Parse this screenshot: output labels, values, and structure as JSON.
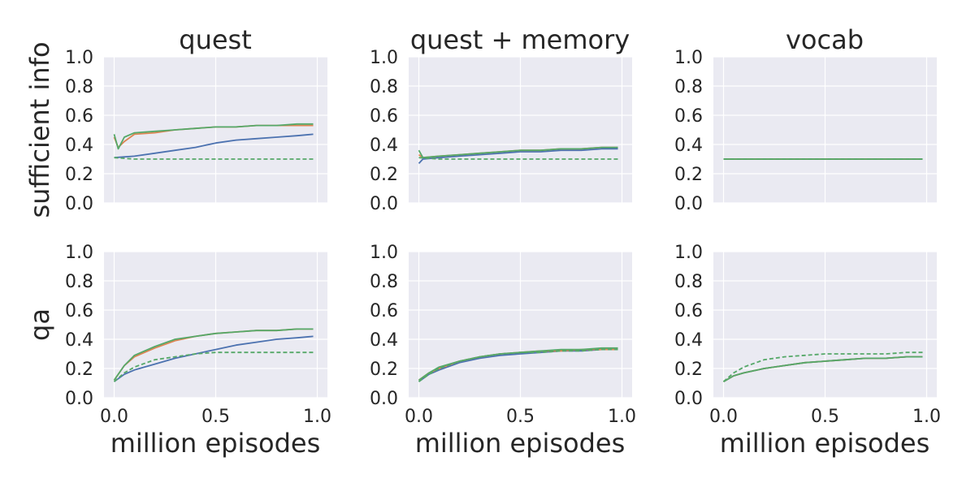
{
  "chart_data": {
    "type": "line",
    "rows": [
      "sufficient info",
      "qa"
    ],
    "columns": [
      "quest",
      "quest + memory",
      "vocab"
    ],
    "xlabel": "million episodes",
    "xlim": [
      -0.05,
      1.05
    ],
    "ylim": [
      0.0,
      1.0
    ],
    "xticks": [
      0.0,
      0.5,
      1.0
    ],
    "xtick_labels": [
      "0.0",
      "0.5",
      "1.0"
    ],
    "yticks": [
      0.0,
      0.2,
      0.4,
      0.6,
      0.8,
      1.0
    ],
    "ytick_labels": [
      "0.0",
      "0.2",
      "0.4",
      "0.6",
      "0.8",
      "1.0"
    ],
    "grid": true,
    "legend": "none",
    "colors": [
      "#4c72b0",
      "#dd8452",
      "#55a868"
    ],
    "panels": [
      {
        "row": "sufficient info",
        "column": "quest",
        "series": [
          {
            "color": "#4c72b0",
            "style": "solid",
            "x": [
              0.0,
              0.1,
              0.2,
              0.3,
              0.4,
              0.5,
              0.6,
              0.7,
              0.8,
              0.9,
              0.98
            ],
            "y": [
              0.31,
              0.32,
              0.34,
              0.36,
              0.38,
              0.41,
              0.43,
              0.44,
              0.45,
              0.46,
              0.47
            ]
          },
          {
            "color": "#dd8452",
            "style": "solid",
            "x": [
              0.0,
              0.02,
              0.05,
              0.1,
              0.2,
              0.3,
              0.4,
              0.5,
              0.6,
              0.7,
              0.8,
              0.9,
              0.98
            ],
            "y": [
              0.45,
              0.38,
              0.42,
              0.47,
              0.48,
              0.5,
              0.51,
              0.52,
              0.52,
              0.53,
              0.53,
              0.53,
              0.53
            ]
          },
          {
            "color": "#55a868",
            "style": "solid",
            "x": [
              0.0,
              0.02,
              0.05,
              0.1,
              0.2,
              0.3,
              0.4,
              0.5,
              0.6,
              0.7,
              0.8,
              0.9,
              0.98
            ],
            "y": [
              0.47,
              0.37,
              0.45,
              0.48,
              0.49,
              0.5,
              0.51,
              0.52,
              0.52,
              0.53,
              0.53,
              0.54,
              0.54
            ]
          },
          {
            "color": "#55a868",
            "style": "dashed",
            "x": [
              0.0,
              0.1,
              0.2,
              0.3,
              0.4,
              0.5,
              0.6,
              0.7,
              0.8,
              0.9,
              0.98
            ],
            "y": [
              0.31,
              0.3,
              0.3,
              0.3,
              0.3,
              0.3,
              0.3,
              0.3,
              0.3,
              0.3,
              0.3
            ]
          }
        ]
      },
      {
        "row": "sufficient info",
        "column": "quest + memory",
        "series": [
          {
            "color": "#4c72b0",
            "style": "solid",
            "x": [
              0.0,
              0.02,
              0.1,
              0.2,
              0.3,
              0.4,
              0.5,
              0.6,
              0.7,
              0.8,
              0.9,
              0.98
            ],
            "y": [
              0.27,
              0.3,
              0.31,
              0.32,
              0.33,
              0.34,
              0.35,
              0.35,
              0.36,
              0.36,
              0.37,
              0.37
            ]
          },
          {
            "color": "#dd8452",
            "style": "solid",
            "x": [
              0.0,
              0.02,
              0.1,
              0.2,
              0.3,
              0.4,
              0.5,
              0.6,
              0.7,
              0.8,
              0.9,
              0.98
            ],
            "y": [
              0.33,
              0.31,
              0.32,
              0.33,
              0.34,
              0.35,
              0.36,
              0.36,
              0.37,
              0.37,
              0.38,
              0.38
            ]
          },
          {
            "color": "#55a868",
            "style": "solid",
            "x": [
              0.0,
              0.02,
              0.1,
              0.2,
              0.3,
              0.4,
              0.5,
              0.6,
              0.7,
              0.8,
              0.9,
              0.98
            ],
            "y": [
              0.36,
              0.31,
              0.32,
              0.33,
              0.34,
              0.35,
              0.36,
              0.36,
              0.37,
              0.37,
              0.38,
              0.38
            ]
          },
          {
            "color": "#55a868",
            "style": "dashed",
            "x": [
              0.0,
              0.1,
              0.2,
              0.3,
              0.4,
              0.5,
              0.6,
              0.7,
              0.8,
              0.9,
              0.98
            ],
            "y": [
              0.31,
              0.3,
              0.3,
              0.3,
              0.3,
              0.3,
              0.3,
              0.3,
              0.3,
              0.3,
              0.3
            ]
          }
        ]
      },
      {
        "row": "sufficient info",
        "column": "vocab",
        "series": [
          {
            "color": "#4c72b0",
            "style": "solid",
            "x": [
              0.0,
              0.1,
              0.2,
              0.3,
              0.4,
              0.5,
              0.6,
              0.7,
              0.8,
              0.9,
              0.98
            ],
            "y": [
              0.3,
              0.3,
              0.3,
              0.3,
              0.3,
              0.3,
              0.3,
              0.3,
              0.3,
              0.3,
              0.3
            ]
          },
          {
            "color": "#dd8452",
            "style": "solid",
            "x": [
              0.0,
              0.1,
              0.2,
              0.3,
              0.4,
              0.5,
              0.6,
              0.7,
              0.8,
              0.9,
              0.98
            ],
            "y": [
              0.3,
              0.3,
              0.3,
              0.3,
              0.3,
              0.3,
              0.3,
              0.3,
              0.3,
              0.3,
              0.3
            ]
          },
          {
            "color": "#55a868",
            "style": "solid",
            "x": [
              0.0,
              0.1,
              0.2,
              0.3,
              0.4,
              0.5,
              0.6,
              0.7,
              0.8,
              0.9,
              0.98
            ],
            "y": [
              0.3,
              0.3,
              0.3,
              0.3,
              0.3,
              0.3,
              0.3,
              0.3,
              0.3,
              0.3,
              0.3
            ]
          },
          {
            "color": "#55a868",
            "style": "dashed",
            "x": [
              0.0,
              0.1,
              0.2,
              0.3,
              0.4,
              0.5,
              0.6,
              0.7,
              0.8,
              0.9,
              0.98
            ],
            "y": [
              0.3,
              0.3,
              0.3,
              0.3,
              0.3,
              0.3,
              0.3,
              0.3,
              0.3,
              0.3,
              0.3
            ]
          }
        ]
      },
      {
        "row": "qa",
        "column": "quest",
        "series": [
          {
            "color": "#4c72b0",
            "style": "solid",
            "x": [
              0.0,
              0.05,
              0.1,
              0.2,
              0.3,
              0.4,
              0.5,
              0.6,
              0.7,
              0.8,
              0.9,
              0.98
            ],
            "y": [
              0.11,
              0.16,
              0.19,
              0.23,
              0.27,
              0.3,
              0.33,
              0.36,
              0.38,
              0.4,
              0.41,
              0.42
            ]
          },
          {
            "color": "#dd8452",
            "style": "solid",
            "x": [
              0.0,
              0.05,
              0.1,
              0.2,
              0.3,
              0.4,
              0.5,
              0.6,
              0.7,
              0.8,
              0.9,
              0.98
            ],
            "y": [
              0.12,
              0.22,
              0.28,
              0.34,
              0.39,
              0.42,
              0.44,
              0.45,
              0.46,
              0.46,
              0.47,
              0.47
            ]
          },
          {
            "color": "#55a868",
            "style": "solid",
            "x": [
              0.0,
              0.05,
              0.1,
              0.2,
              0.3,
              0.4,
              0.5,
              0.6,
              0.7,
              0.8,
              0.9,
              0.98
            ],
            "y": [
              0.12,
              0.22,
              0.29,
              0.35,
              0.4,
              0.42,
              0.44,
              0.45,
              0.46,
              0.46,
              0.47,
              0.47
            ]
          },
          {
            "color": "#55a868",
            "style": "dashed",
            "x": [
              0.0,
              0.05,
              0.1,
              0.2,
              0.3,
              0.4,
              0.5,
              0.6,
              0.7,
              0.8,
              0.9,
              0.98
            ],
            "y": [
              0.11,
              0.17,
              0.21,
              0.26,
              0.28,
              0.3,
              0.31,
              0.31,
              0.31,
              0.31,
              0.31,
              0.31
            ]
          }
        ]
      },
      {
        "row": "qa",
        "column": "quest + memory",
        "series": [
          {
            "color": "#4c72b0",
            "style": "solid",
            "x": [
              0.0,
              0.05,
              0.1,
              0.2,
              0.3,
              0.4,
              0.5,
              0.6,
              0.7,
              0.8,
              0.9,
              0.98
            ],
            "y": [
              0.11,
              0.16,
              0.19,
              0.24,
              0.27,
              0.29,
              0.3,
              0.31,
              0.32,
              0.32,
              0.33,
              0.33
            ]
          },
          {
            "color": "#dd8452",
            "style": "solid",
            "x": [
              0.0,
              0.05,
              0.1,
              0.2,
              0.3,
              0.4,
              0.5,
              0.6,
              0.7,
              0.8,
              0.9,
              0.98
            ],
            "y": [
              0.12,
              0.17,
              0.2,
              0.25,
              0.28,
              0.3,
              0.31,
              0.32,
              0.32,
              0.33,
              0.33,
              0.33
            ]
          },
          {
            "color": "#55a868",
            "style": "solid",
            "x": [
              0.0,
              0.05,
              0.1,
              0.2,
              0.3,
              0.4,
              0.5,
              0.6,
              0.7,
              0.8,
              0.9,
              0.98
            ],
            "y": [
              0.12,
              0.17,
              0.21,
              0.25,
              0.28,
              0.3,
              0.31,
              0.32,
              0.33,
              0.33,
              0.34,
              0.34
            ]
          },
          {
            "color": "#55a868",
            "style": "dashed",
            "x": [
              0.0,
              0.05,
              0.1,
              0.2,
              0.3,
              0.4,
              0.5,
              0.6,
              0.7,
              0.8,
              0.9,
              0.98
            ],
            "y": [
              0.11,
              0.16,
              0.2,
              0.25,
              0.28,
              0.3,
              0.31,
              0.31,
              0.32,
              0.32,
              0.33,
              0.33
            ]
          }
        ]
      },
      {
        "row": "qa",
        "column": "vocab",
        "series": [
          {
            "color": "#4c72b0",
            "style": "solid",
            "x": [
              0.0,
              0.05,
              0.1,
              0.2,
              0.3,
              0.4,
              0.5,
              0.6,
              0.7,
              0.8,
              0.9,
              0.98
            ],
            "y": [
              0.11,
              0.15,
              0.17,
              0.2,
              0.22,
              0.24,
              0.25,
              0.26,
              0.27,
              0.27,
              0.28,
              0.28
            ]
          },
          {
            "color": "#dd8452",
            "style": "solid",
            "x": [
              0.0,
              0.05,
              0.1,
              0.2,
              0.3,
              0.4,
              0.5,
              0.6,
              0.7,
              0.8,
              0.9,
              0.98
            ],
            "y": [
              0.11,
              0.15,
              0.17,
              0.2,
              0.22,
              0.24,
              0.25,
              0.26,
              0.27,
              0.27,
              0.28,
              0.28
            ]
          },
          {
            "color": "#55a868",
            "style": "solid",
            "x": [
              0.0,
              0.05,
              0.1,
              0.2,
              0.3,
              0.4,
              0.5,
              0.6,
              0.7,
              0.8,
              0.9,
              0.98
            ],
            "y": [
              0.11,
              0.15,
              0.17,
              0.2,
              0.22,
              0.24,
              0.25,
              0.26,
              0.27,
              0.27,
              0.28,
              0.28
            ]
          },
          {
            "color": "#55a868",
            "style": "dashed",
            "x": [
              0.0,
              0.05,
              0.1,
              0.2,
              0.3,
              0.4,
              0.5,
              0.6,
              0.7,
              0.8,
              0.9,
              0.98
            ],
            "y": [
              0.11,
              0.17,
              0.21,
              0.26,
              0.28,
              0.29,
              0.3,
              0.3,
              0.3,
              0.3,
              0.31,
              0.31
            ]
          }
        ]
      }
    ]
  }
}
